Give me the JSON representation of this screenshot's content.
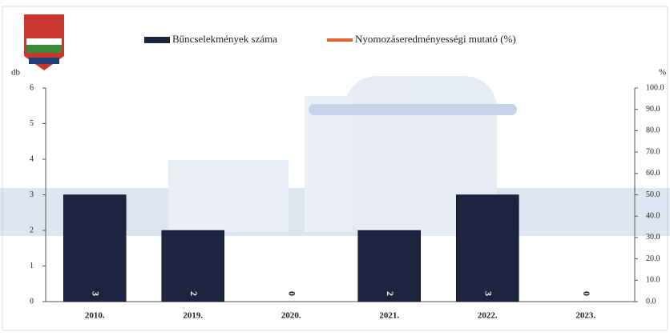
{
  "chart_data": {
    "type": "bar",
    "categories": [
      "2010.",
      "2019.",
      "2020.",
      "2021.",
      "2022.",
      "2023."
    ],
    "series": [
      {
        "name": "Bűncselekmények száma",
        "color": "#1c2440",
        "values": [
          3,
          2,
          0,
          2,
          3,
          0
        ]
      },
      {
        "name": "Nyomozáseredményességi mutató (%)",
        "color": "#e8612a",
        "axis": "y2",
        "values": [
          null,
          null,
          null,
          null,
          null,
          null
        ]
      }
    ],
    "y_label": "db",
    "y2_label": "%",
    "ylim": [
      0,
      6
    ],
    "yticks": [
      0,
      1,
      2,
      3,
      4,
      5,
      6
    ],
    "y2lim": [
      0,
      100
    ],
    "y2ticks": [
      {
        "value": 0,
        "label": "0.0"
      },
      {
        "value": 10,
        "label": "10.0"
      },
      {
        "value": 20,
        "label": "20.0"
      },
      {
        "value": 30,
        "label": "30.0"
      },
      {
        "value": 40,
        "label": "40.0"
      },
      {
        "value": 50,
        "label": "50.0"
      },
      {
        "value": 60,
        "label": "60.0"
      },
      {
        "value": 70,
        "label": "70.0"
      },
      {
        "value": 80,
        "label": "80.0"
      },
      {
        "value": 90,
        "label": "90.0"
      },
      {
        "value": 100,
        "label": "100.0"
      }
    ],
    "grid": false
  }
}
